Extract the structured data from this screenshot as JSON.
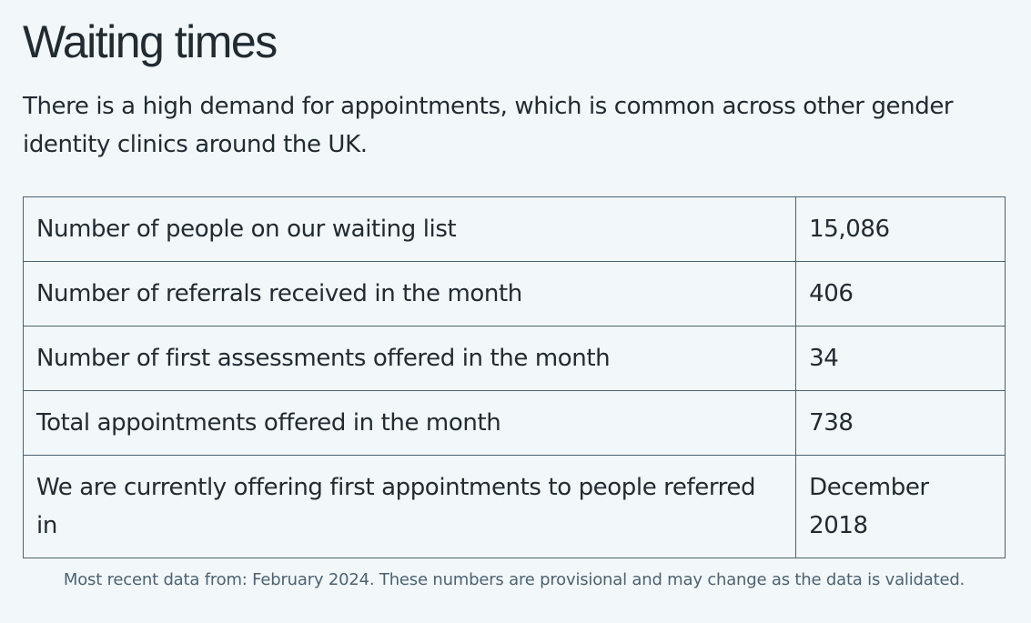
{
  "heading": "Waiting times",
  "intro": "There is a high demand for appointments, which is common across other gender identity clinics around the UK.",
  "table": {
    "rows": [
      {
        "label": "Number of people on our waiting list",
        "value": "15,086"
      },
      {
        "label": "Number of referrals received in the month",
        "value": "406"
      },
      {
        "label": "Number of first assessments offered in the month",
        "value": "34"
      },
      {
        "label": "Total appointments offered in the month",
        "value": "738"
      },
      {
        "label": "We are currently offering first appointments to people referred in",
        "value": "December 2018"
      }
    ]
  },
  "caption": "Most recent data from: February 2024. These numbers are provisional and may change as the data is validated.",
  "colors": {
    "background": "#f2f7f9",
    "text": "#212b32",
    "border": "#4c6272",
    "caption": "#4c6272"
  }
}
